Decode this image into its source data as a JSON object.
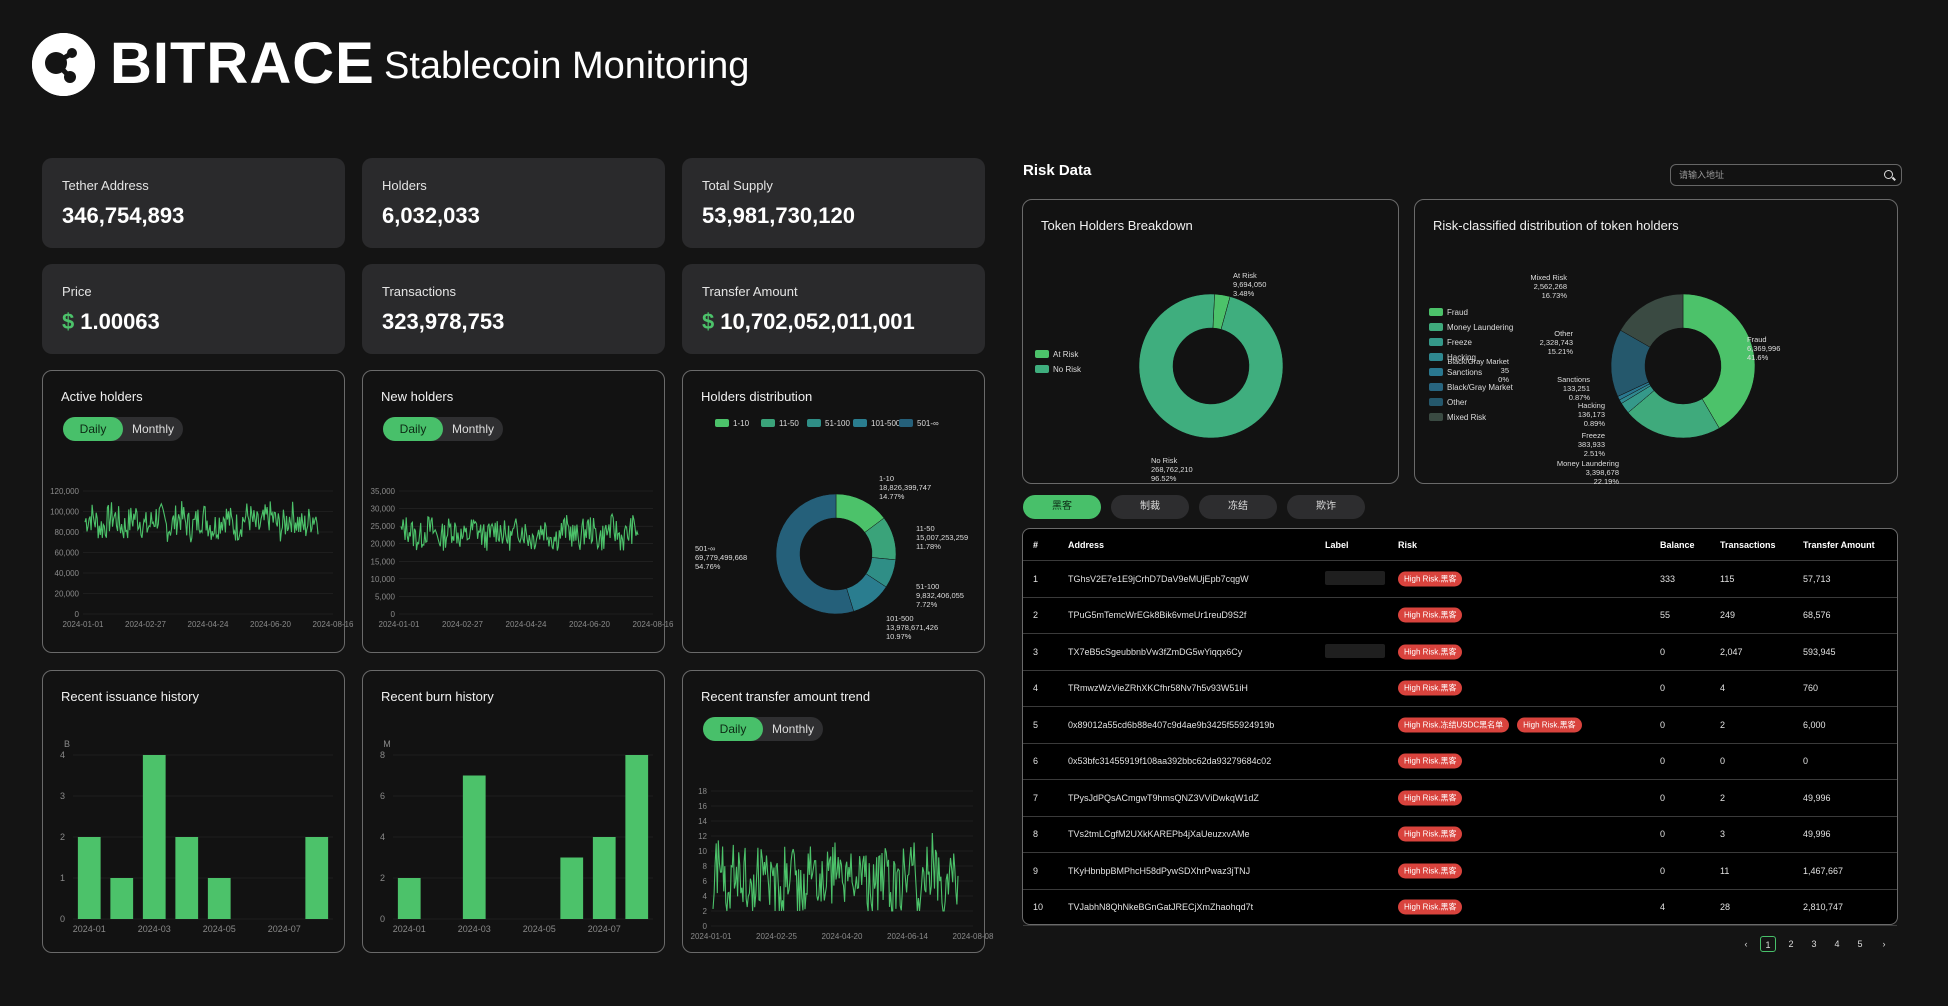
{
  "brand": {
    "logo_text": "BITRACE",
    "app_title": "Stablecoin Monitoring"
  },
  "stats": [
    {
      "label": "Tether Address",
      "value": "346,754,893",
      "currency": ""
    },
    {
      "label": "Holders",
      "value": "6,032,033",
      "currency": ""
    },
    {
      "label": "Total Supply",
      "value": "53,981,730,120",
      "currency": ""
    },
    {
      "label": "Price",
      "value": "1.00063",
      "currency": "$"
    },
    {
      "label": "Transactions",
      "value": "323,978,753",
      "currency": ""
    },
    {
      "label": "Transfer Amount",
      "value": "10,702,052,011,001",
      "currency": "$"
    }
  ],
  "toggle": {
    "daily": "Daily",
    "monthly": "Monthly"
  },
  "colors": {
    "accent": "#48c06a",
    "danger": "#d9433d"
  },
  "panels": {
    "active_holders": "Active holders",
    "new_holders": "New holders",
    "holders_distribution": "Holders distribution",
    "issuance": "Recent issuance history",
    "burn": "Recent burn history",
    "transfer_trend": "Recent transfer amount trend",
    "token_breakdown": "Token Holders Breakdown",
    "risk_distribution": "Risk-classified distribution of token holders"
  },
  "chart_data": [
    {
      "id": "active_holders",
      "type": "line",
      "y_ticks": [
        "0",
        "20,000",
        "40,000",
        "60,000",
        "80,000",
        "100,000",
        "120,000"
      ],
      "x_ticks": [
        "2024-01-01",
        "2024-02-27",
        "2024-04-24",
        "2024-06-20",
        "2024-08-16"
      ],
      "ylim": [
        0,
        120000
      ],
      "series_range": [
        70000,
        112000
      ],
      "mean": 90000
    },
    {
      "id": "new_holders",
      "type": "line",
      "y_ticks": [
        "0",
        "5,000",
        "10,000",
        "15,000",
        "20,000",
        "25,000",
        "30,000",
        "35,000"
      ],
      "x_ticks": [
        "2024-01-01",
        "2024-02-27",
        "2024-04-24",
        "2024-06-20",
        "2024-08-16"
      ],
      "ylim": [
        0,
        35000
      ],
      "series_range": [
        18000,
        29000
      ],
      "mean": 23000
    },
    {
      "id": "holders_distribution",
      "type": "pie",
      "legend": [
        "1-10",
        "11-50",
        "51-100",
        "101-500",
        "501-∞"
      ],
      "slices": [
        {
          "name": "1-10",
          "value": 18826399747,
          "pct": "14.77%",
          "color": "#4cc26a"
        },
        {
          "name": "11-50",
          "value": 15007253259,
          "pct": "11.78%",
          "color": "#3aa37a"
        },
        {
          "name": "51-100",
          "value": 9832406055,
          "pct": "7.72%",
          "color": "#2f8e86"
        },
        {
          "name": "101-500",
          "value": 13978671426,
          "pct": "10.97%",
          "color": "#2a7d8f"
        },
        {
          "name": "501-∞",
          "value": 69779499668,
          "pct": "54.76%",
          "color": "#25607a"
        }
      ],
      "labels": [
        [
          "1-10",
          "18,826,399,747",
          "14.77%"
        ],
        [
          "11-50",
          "15,007,253,259",
          "11.78%"
        ],
        [
          "51-100",
          "9,832,406,055",
          "7.72%"
        ],
        [
          "101-500",
          "13,978,671,426",
          "10.97%"
        ],
        [
          "501-∞",
          "69,779,499,668",
          "54.76%"
        ]
      ]
    },
    {
      "id": "issuance",
      "type": "bar",
      "unit": "B",
      "y_ticks": [
        "0",
        "1",
        "2",
        "3",
        "4"
      ],
      "x_ticks": [
        "2024-01",
        "2024-03",
        "2024-05",
        "2024-07"
      ],
      "values": [
        2,
        1,
        4,
        2,
        1,
        0,
        0,
        2
      ],
      "ylim": [
        0,
        4
      ]
    },
    {
      "id": "burn",
      "type": "bar",
      "unit": "M",
      "y_ticks": [
        "0",
        "2",
        "4",
        "6",
        "8"
      ],
      "x_ticks": [
        "2024-01",
        "2024-03",
        "2024-05",
        "2024-07"
      ],
      "values": [
        2,
        0,
        7,
        0,
        0,
        3,
        4,
        8
      ],
      "ylim": [
        0,
        8
      ]
    },
    {
      "id": "transfer_trend",
      "type": "line",
      "y_ticks": [
        "0",
        "2",
        "4",
        "6",
        "8",
        "10",
        "12",
        "14",
        "16",
        "18"
      ],
      "x_ticks": [
        "2024-01-01",
        "2024-02-25",
        "2024-04-20",
        "2024-06-14",
        "2024-08-08"
      ],
      "ylim": [
        0,
        18
      ],
      "series_range": [
        2,
        13
      ],
      "mean": 6
    },
    {
      "id": "token_breakdown",
      "type": "pie",
      "legend": [
        "At Risk",
        "No Risk"
      ],
      "slices": [
        {
          "name": "At Risk",
          "value": 9694050,
          "pct": "3.48%",
          "color": "#4cc26a"
        },
        {
          "name": "No Risk",
          "value": 268762210,
          "pct": "96.52%",
          "color": "#3fae7e"
        }
      ],
      "labels": [
        [
          "At Risk",
          "9,694,050",
          "3.48%"
        ],
        [
          "No Risk",
          "268,762,210",
          "96.52%"
        ]
      ]
    },
    {
      "id": "risk_distribution",
      "type": "pie",
      "legend": [
        "Fraud",
        "Money Laundering",
        "Freeze",
        "Hacking",
        "Sanctions",
        "Black/Gray Market",
        "Other",
        "Mixed Risk"
      ],
      "slices": [
        {
          "name": "Fraud",
          "value": 6369996,
          "pct": "41.6%",
          "color": "#4cc26a"
        },
        {
          "name": "Money Laundering",
          "value": 3398678,
          "pct": "22.19%",
          "color": "#3faa7c"
        },
        {
          "name": "Freeze",
          "value": 383933,
          "pct": "2.51%",
          "color": "#35998a"
        },
        {
          "name": "Hacking",
          "value": 136173,
          "pct": "0.89%",
          "color": "#2f8890"
        },
        {
          "name": "Sanctions",
          "value": 133251,
          "pct": "0.87%",
          "color": "#2a7890"
        },
        {
          "name": "Black/Gray Market",
          "value": 35,
          "pct": "0%",
          "color": "#28657f"
        },
        {
          "name": "Other",
          "value": 2328743,
          "pct": "15.21%",
          "color": "#25586c"
        },
        {
          "name": "Mixed Risk",
          "value": 2562268,
          "pct": "16.73%",
          "color": "#3a4a42"
        }
      ],
      "labels": [
        [
          "Fraud",
          "6,369,996",
          "41.6%"
        ],
        [
          "Money Laundering",
          "3,398,678",
          "22.19%"
        ],
        [
          "Freeze",
          "383,933",
          "2.51%"
        ],
        [
          "Hacking",
          "136,173",
          "0.89%"
        ],
        [
          "Sanctions",
          "133,251",
          "0.87%"
        ],
        [
          "Black/Gray Market",
          "35",
          "0%"
        ],
        [
          "Other",
          "2,328,743",
          "15.21%"
        ],
        [
          "Mixed Risk",
          "2,562,268",
          "16.73%"
        ]
      ]
    }
  ],
  "risk": {
    "title": "Risk Data",
    "search_placeholder": "请输入地址",
    "tabs": [
      "黑客",
      "制裁",
      "冻结",
      "欺诈"
    ],
    "columns": [
      "#",
      "Address",
      "Label",
      "Risk",
      "Balance",
      "Transactions",
      "Transfer Amount"
    ],
    "rows": [
      {
        "idx": "1",
        "address": "TGhsV2E7e1E9jCrhD7DaV9eMUjEpb7cqgW",
        "has_label": true,
        "risks": [
          "High Risk.黑客"
        ],
        "balance": "333",
        "transactions": "115",
        "amount": "57,713"
      },
      {
        "idx": "2",
        "address": "TPuG5mTemcWrEGk8Bik6vmeUr1reuD9S2f",
        "has_label": false,
        "risks": [
          "High Risk.黑客"
        ],
        "balance": "55",
        "transactions": "249",
        "amount": "68,576"
      },
      {
        "idx": "3",
        "address": "TX7eB5cSgeubbnbVw3fZmDG5wYiqqx6Cy",
        "has_label": true,
        "risks": [
          "High Risk.黑客"
        ],
        "balance": "0",
        "transactions": "2,047",
        "amount": "593,945"
      },
      {
        "idx": "4",
        "address": "TRmwzWzVieZRhXKCfhr58Nv7h5v93W51iH",
        "has_label": false,
        "risks": [
          "High Risk.黑客"
        ],
        "balance": "0",
        "transactions": "4",
        "amount": "760"
      },
      {
        "idx": "5",
        "address": "0x89012a55cd6b88e407c9d4ae9b3425f55924919b",
        "has_label": false,
        "risks": [
          "High Risk.冻结USDC黑名单",
          "High Risk.黑客"
        ],
        "balance": "0",
        "transactions": "2",
        "amount": "6,000"
      },
      {
        "idx": "6",
        "address": "0x53bfc31455919f108aa392bbc62da93279684c02",
        "has_label": false,
        "risks": [
          "High Risk.黑客"
        ],
        "balance": "0",
        "transactions": "0",
        "amount": "0"
      },
      {
        "idx": "7",
        "address": "TPysJdPQsACmgwT9hmsQNZ3VViDwkqW1dZ",
        "has_label": false,
        "risks": [
          "High Risk.黑客"
        ],
        "balance": "0",
        "transactions": "2",
        "amount": "49,996"
      },
      {
        "idx": "8",
        "address": "TVs2tmLCgfM2UXkKAREPb4jXaUeuzxvAMe",
        "has_label": false,
        "risks": [
          "High Risk.黑客"
        ],
        "balance": "0",
        "transactions": "3",
        "amount": "49,996"
      },
      {
        "idx": "9",
        "address": "TKyHbnbpBMPhcH58dPywSDXhrPwaz3jTNJ",
        "has_label": false,
        "risks": [
          "High Risk.黑客"
        ],
        "balance": "0",
        "transactions": "11",
        "amount": "1,467,667"
      },
      {
        "idx": "10",
        "address": "TVJabhN8QhNkeBGnGatJRECjXmZhaohqd7t",
        "has_label": false,
        "risks": [
          "High Risk.黑客"
        ],
        "balance": "4",
        "transactions": "28",
        "amount": "2,810,747"
      }
    ],
    "pagination": {
      "prev": "‹",
      "pages": [
        "1",
        "2",
        "3",
        "4",
        "5"
      ],
      "next": "›",
      "current": "1"
    }
  }
}
